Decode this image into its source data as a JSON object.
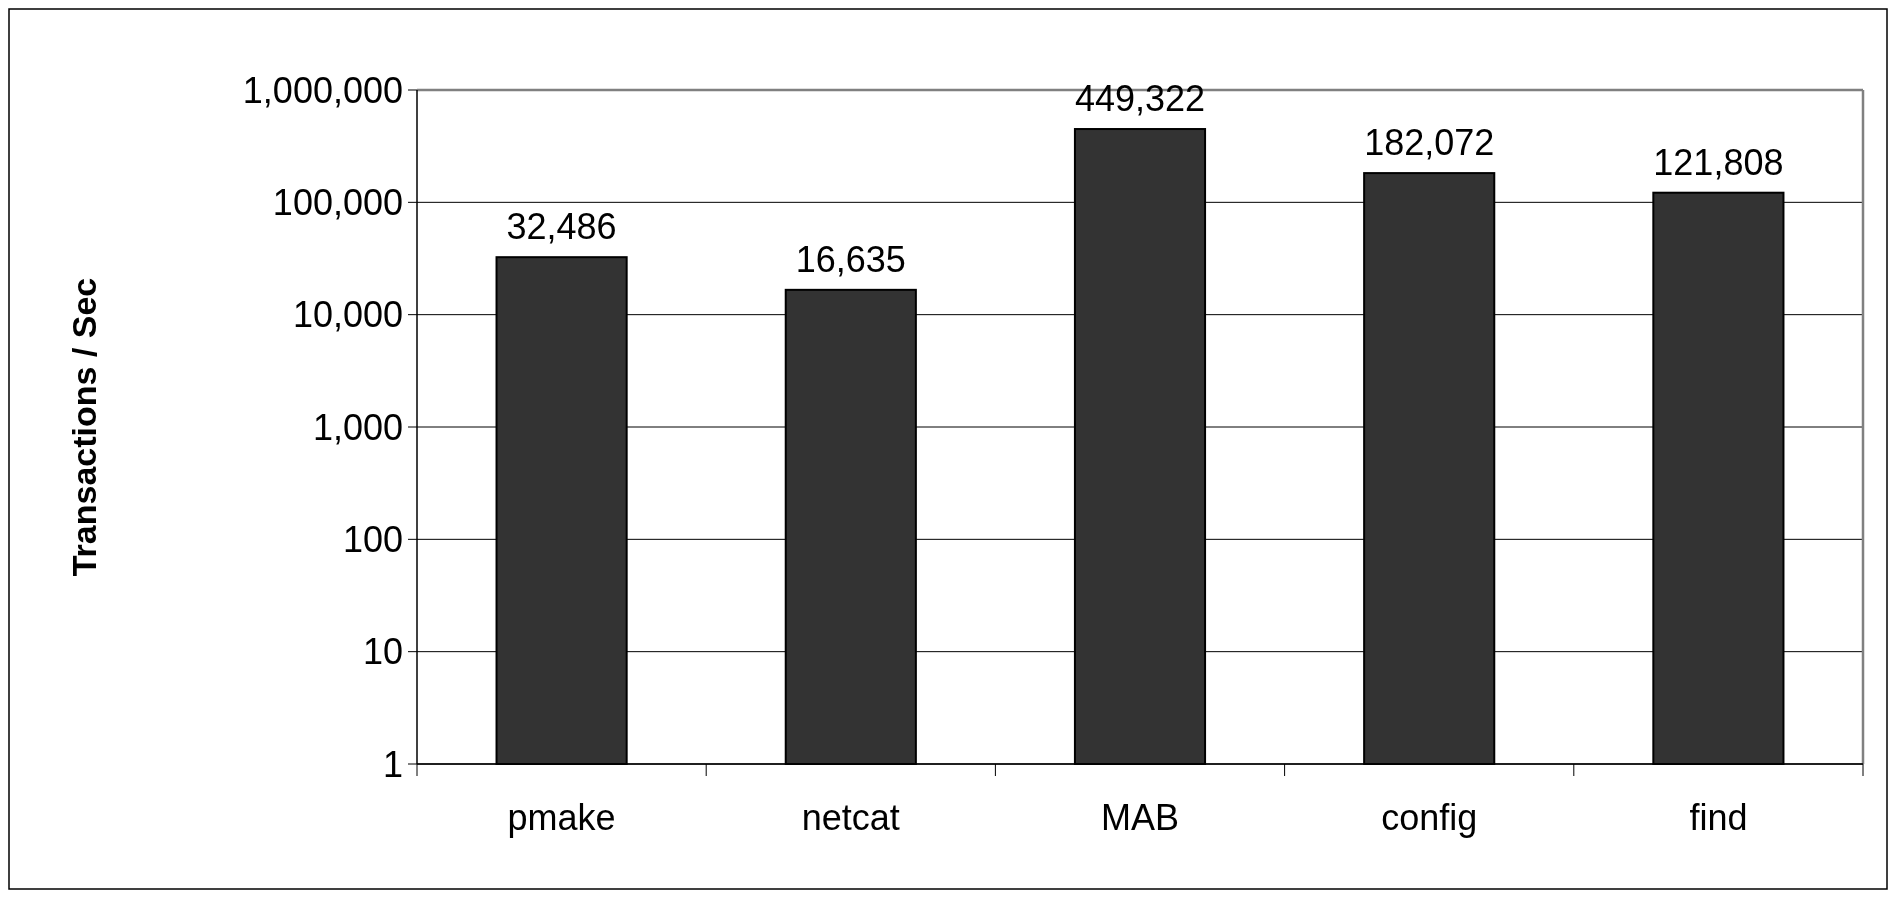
{
  "chart_data": {
    "type": "bar",
    "ylabel": "Transactions / Sec",
    "categories": [
      "pmake",
      "netcat",
      "MAB",
      "config",
      "find"
    ],
    "values": [
      32486,
      16635,
      449322,
      182072,
      121808
    ],
    "value_labels": [
      "32,486",
      "16,635",
      "449,322",
      "182,072",
      "121,808"
    ],
    "color": "#333333",
    "log": true,
    "grid": "y",
    "ylim": [
      1,
      1000000
    ],
    "yticks": [
      {
        "value": 1,
        "label": "1"
      },
      {
        "value": 10,
        "label": "10"
      },
      {
        "value": 100,
        "label": "100"
      },
      {
        "value": 1000,
        "label": "1,000"
      },
      {
        "value": 10000,
        "label": "10,000"
      },
      {
        "value": 100000,
        "label": "100,000"
      },
      {
        "value": 1000000,
        "label": "1,000,000"
      }
    ]
  }
}
